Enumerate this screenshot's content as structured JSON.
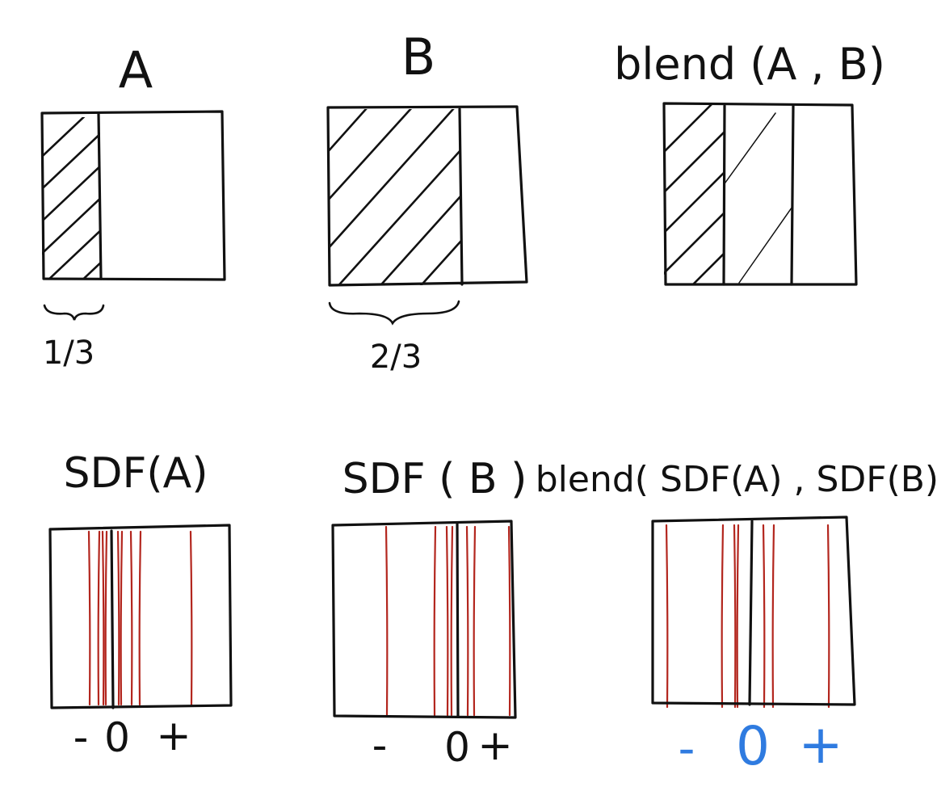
{
  "colors": {
    "ink": "#111111",
    "sdf_line": "#b3261e",
    "accent": "#2f7be0",
    "background": "#ffffff"
  },
  "top_row": [
    {
      "title": "A",
      "fraction_label": "1/3",
      "hatched_fraction": 0.333
    },
    {
      "title": "B",
      "fraction_label": "2/3",
      "hatched_fraction": 0.667
    },
    {
      "title": "blend (A , B)",
      "fraction_label": "",
      "hatched_fraction": 0.5
    }
  ],
  "bottom_row": [
    {
      "title": "SDF(A)",
      "minus": "-",
      "zero": "0",
      "plus": "+",
      "zero_crossing": 0.333
    },
    {
      "title": "SDF ( B )",
      "minus": "-",
      "zero": "0",
      "plus": "+",
      "zero_crossing": 0.667
    },
    {
      "title": "blend( SDF(A) , SDF(B) )",
      "minus": "-",
      "zero": "0",
      "plus": "+",
      "zero_crossing": 0.5
    }
  ]
}
